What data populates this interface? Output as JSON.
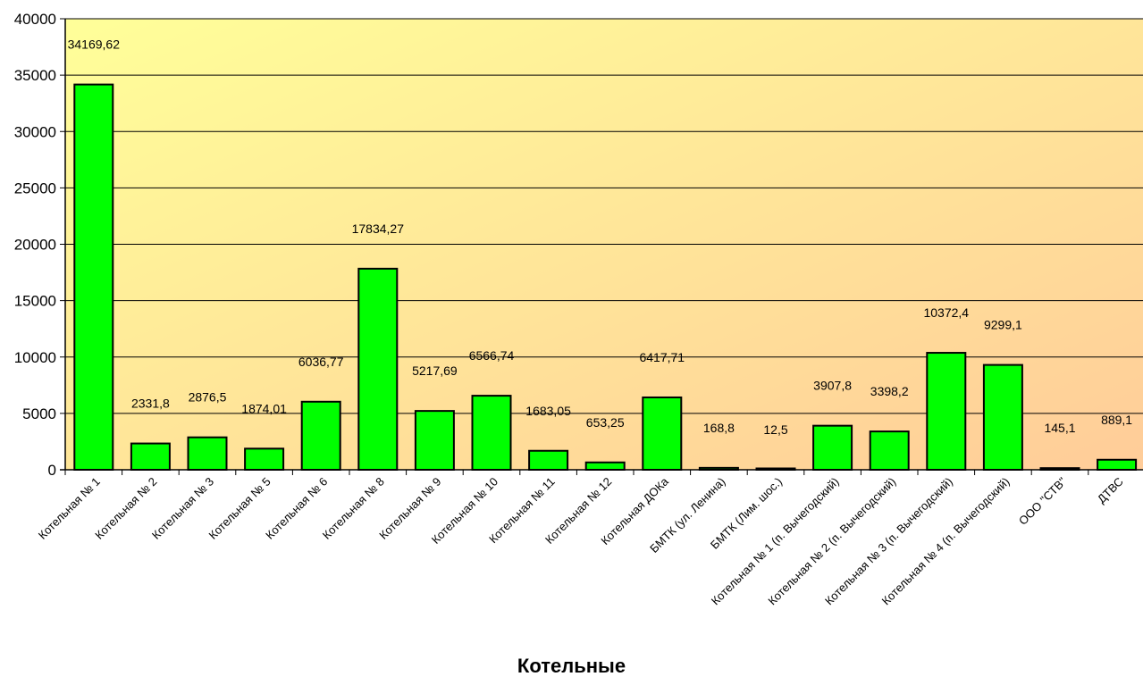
{
  "chart_data": {
    "type": "bar",
    "title": "",
    "xlabel": "Котельные",
    "ylabel": "",
    "ylim": [
      0,
      40000
    ],
    "yticks": [
      0,
      5000,
      10000,
      15000,
      20000,
      25000,
      30000,
      35000,
      40000
    ],
    "grid": true,
    "legend": "none",
    "categories": [
      "Котельная № 1",
      "Котельная № 2",
      "Котельная № 3",
      "Котельная № 5",
      "Котельная № 6",
      "Котельная № 8",
      "Котельная № 9",
      "Котельная № 10",
      "Котельная № 11",
      "Котельная № 12",
      "Котельная ДОКа",
      "БМТК (ул. Ленина)",
      "БМТК (Лим. шос.)",
      "Котельная № 1 (п. Вычегодский)",
      "Котельная № 2 (п. Вычегодский)",
      "Котельная № 3 (п. Вычегодский)",
      "Котельная № 4 (п. Вычегодский)",
      "ООО \"СТВ\"",
      "ДТВС"
    ],
    "values": [
      34169.62,
      2331.8,
      2876.5,
      1874.01,
      6036.77,
      17834.27,
      5217.69,
      6566.74,
      1683.05,
      653.25,
      6417.71,
      168.8,
      12.5,
      3907.8,
      3398.2,
      10372.4,
      9299.1,
      145.1,
      889.1
    ],
    "value_labels": [
      "34169,62",
      "2331,8",
      "2876,5",
      "1874,01",
      "6036,77",
      "17834,27",
      "5217,69",
      "6566,74",
      "1683,05",
      "653,25",
      "6417,71",
      "168,8",
      "12,5",
      "3907,8",
      "3398,2",
      "10372,4",
      "9299,1",
      "145,1",
      "889,1"
    ],
    "colors": {
      "bar_fill": "#00ff00",
      "bar_stroke": "#000000",
      "plot_bg_start": "#ffff99",
      "plot_bg_end": "#ffcc99",
      "grid": "#000000"
    }
  }
}
